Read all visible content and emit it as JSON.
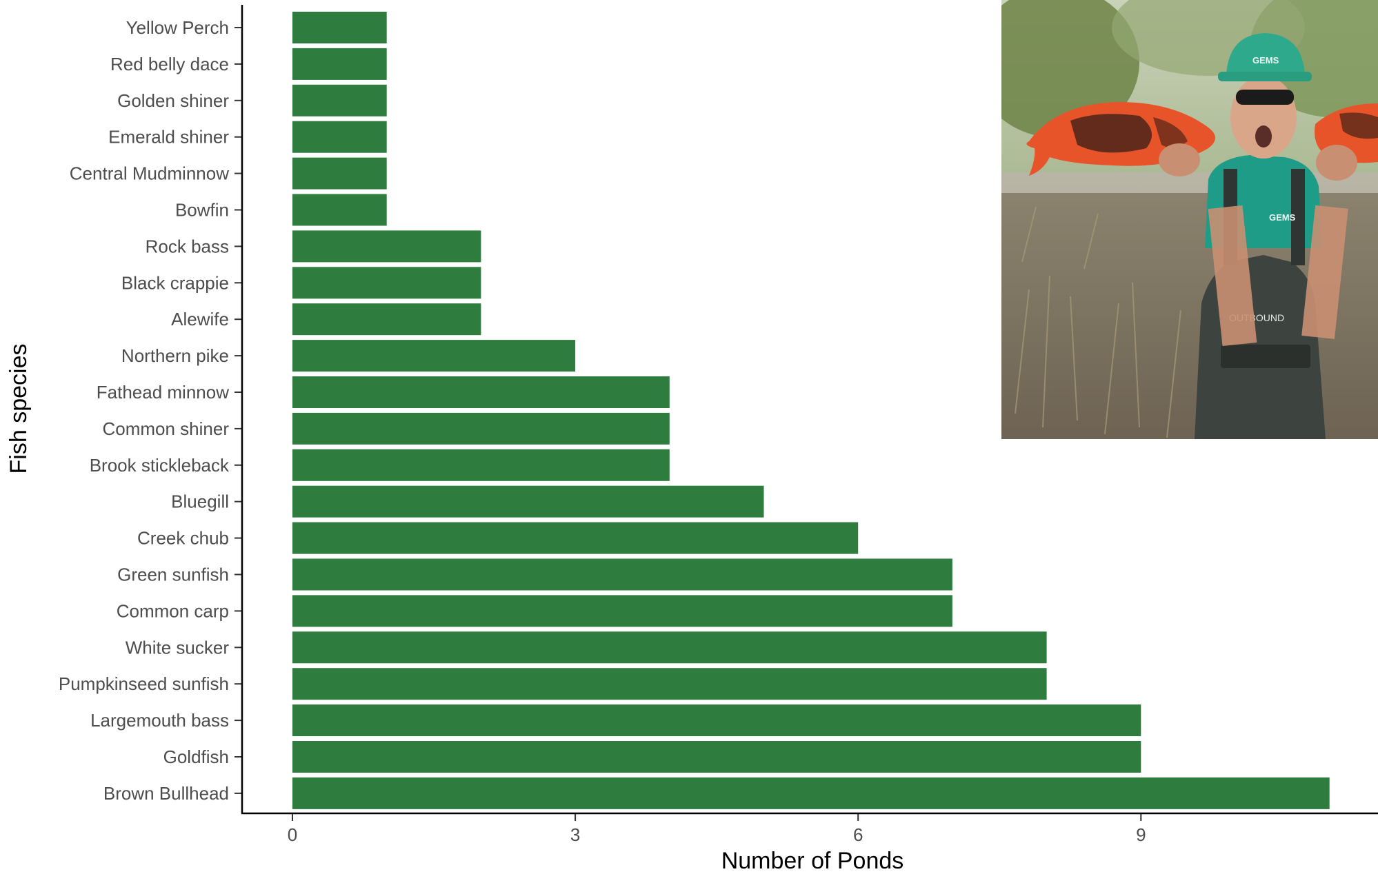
{
  "chart_data": {
    "type": "bar",
    "orientation": "horizontal",
    "xlabel": "Number of Ponds",
    "ylabel": "Fish species",
    "xlim": [
      0,
      11
    ],
    "xticks": [
      0,
      3,
      6,
      9
    ],
    "grid": false,
    "bar_color": "#2e7d3e",
    "categories": [
      "Yellow Perch",
      "Red belly dace",
      "Golden shiner",
      "Emerald shiner",
      "Central Mudminnow",
      "Bowfin",
      "Rock bass",
      "Black crappie",
      "Alewife",
      "Northern pike",
      "Fathead minnow",
      "Common shiner",
      "Brook stickleback",
      "Bluegill",
      "Creek chub",
      "Green sunfish",
      "Common carp",
      "White sucker",
      "Pumpkinseed sunfish",
      "Largemouth bass",
      "Goldfish",
      "Brown Bullhead"
    ],
    "values": [
      1,
      1,
      1,
      1,
      1,
      1,
      2,
      2,
      2,
      3,
      4,
      4,
      4,
      5,
      6,
      7,
      7,
      8,
      8,
      9,
      9,
      11
    ]
  },
  "photo": {
    "hat_text": "GEMS",
    "shirt_text": "GEMS",
    "waders_text": "OUTBOUND"
  }
}
